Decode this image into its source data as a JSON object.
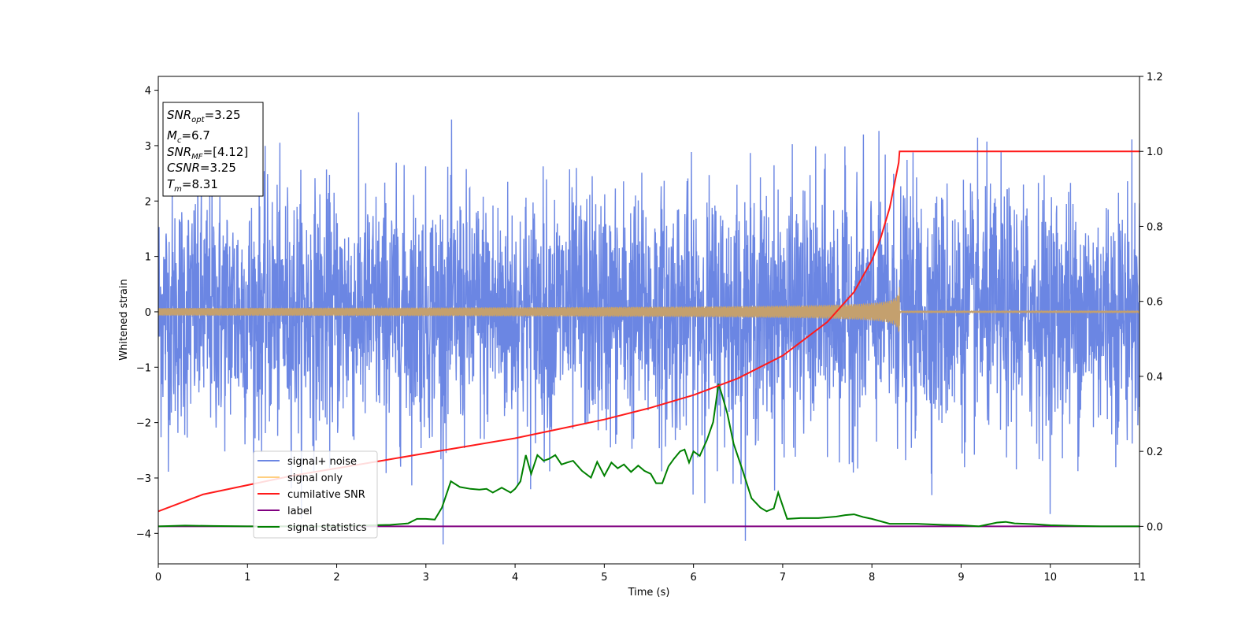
{
  "chart_data": {
    "type": "line",
    "xlabel": "Time (s)",
    "ylabel": "Whitened strain",
    "xlim": [
      0,
      11
    ],
    "ylim": [
      -4.55,
      4.25
    ],
    "y2lim": [
      -0.1,
      1.2
    ],
    "x_ticks": [
      "0",
      "1",
      "2",
      "3",
      "4",
      "5",
      "6",
      "7",
      "8",
      "9",
      "10",
      "11"
    ],
    "y_ticks": [
      "4",
      "3",
      "2",
      "1",
      "0",
      "−1",
      "−2",
      "−3",
      "−4"
    ],
    "y2_ticks": [
      "1.2",
      "1.0",
      "0.8",
      "0.6",
      "0.4",
      "0.2",
      "0.0"
    ],
    "grid": false,
    "legend_position": "lower-left",
    "annotation": {
      "lines": [
        {
          "base": "SNR",
          "sub": "opt",
          "rest": "=3.25"
        },
        {
          "base": "M",
          "sub": "c",
          "rest": "=6.7"
        },
        {
          "base": "SNR",
          "sub": "MF",
          "rest": "=[4.12]"
        },
        {
          "base": "CSNR",
          "sub": "",
          "rest": "=3.25"
        },
        {
          "base": "T",
          "sub": "m",
          "rest": "=8.31"
        }
      ]
    },
    "series": [
      {
        "name": "signal+ noise",
        "axis": "left",
        "color": "#6b86e3",
        "description_values": {
          "noise_std": 1.0,
          "noise_range": [
            -4.2,
            3.85
          ],
          "duration": 11
        }
      },
      {
        "name": "signal only",
        "axis": "left",
        "color": "#c4a06e",
        "legend_color": "#ffcf80",
        "envelope": {
          "start": 0,
          "merger": 8.31,
          "peak_amplitude": 0.45,
          "post_amplitude": 0.02
        }
      },
      {
        "name": "cumilative SNR",
        "axis": "right",
        "color": "#ff1a1a",
        "x": [
          0,
          0.5,
          1,
          1.5,
          2,
          2.5,
          3,
          3.5,
          4,
          4.5,
          5,
          5.5,
          6,
          6.5,
          7,
          7.5,
          7.8,
          8.0,
          8.1,
          8.2,
          8.25,
          8.3,
          8.31,
          11
        ],
        "values": [
          0.04,
          0.085,
          0.11,
          0.135,
          0.155,
          0.175,
          0.195,
          0.215,
          0.235,
          0.26,
          0.285,
          0.315,
          0.35,
          0.395,
          0.455,
          0.545,
          0.625,
          0.71,
          0.77,
          0.85,
          0.91,
          0.97,
          1.0,
          1.0
        ]
      },
      {
        "name": "label",
        "axis": "right",
        "color": "#800080",
        "x": [
          0,
          11
        ],
        "values": [
          0,
          0
        ]
      },
      {
        "name": "signal statistics",
        "axis": "right",
        "color": "#008000",
        "x": [
          0,
          0.3,
          0.6,
          1.0,
          1.5,
          2.0,
          2.4,
          2.6,
          2.8,
          2.9,
          3.0,
          3.1,
          3.18,
          3.28,
          3.38,
          3.5,
          3.6,
          3.68,
          3.75,
          3.85,
          3.95,
          4.0,
          4.06,
          4.12,
          4.18,
          4.25,
          4.32,
          4.38,
          4.45,
          4.52,
          4.58,
          4.65,
          4.75,
          4.85,
          4.92,
          5.0,
          5.08,
          5.15,
          5.22,
          5.3,
          5.38,
          5.45,
          5.52,
          5.58,
          5.65,
          5.72,
          5.78,
          5.85,
          5.9,
          5.95,
          6.0,
          6.07,
          6.15,
          6.22,
          6.28,
          6.32,
          6.38,
          6.45,
          6.55,
          6.65,
          6.75,
          6.82,
          6.9,
          6.95,
          7.05,
          7.2,
          7.4,
          7.6,
          7.7,
          7.8,
          7.9,
          8.0,
          8.2,
          8.5,
          8.8,
          9.0,
          9.2,
          9.4,
          9.5,
          9.6,
          9.8,
          10.0,
          10.3,
          10.6,
          11.0
        ],
        "values": [
          0.0,
          0.002,
          0.001,
          0.0,
          0.0,
          0.0,
          0.003,
          0.004,
          0.008,
          0.02,
          0.02,
          0.018,
          0.05,
          0.12,
          0.105,
          0.1,
          0.098,
          0.1,
          0.09,
          0.103,
          0.09,
          0.1,
          0.12,
          0.19,
          0.14,
          0.19,
          0.175,
          0.18,
          0.19,
          0.165,
          0.17,
          0.175,
          0.148,
          0.13,
          0.172,
          0.135,
          0.17,
          0.155,
          0.165,
          0.145,
          0.162,
          0.148,
          0.14,
          0.115,
          0.115,
          0.16,
          0.18,
          0.2,
          0.205,
          0.17,
          0.2,
          0.188,
          0.23,
          0.278,
          0.38,
          0.35,
          0.3,
          0.22,
          0.15,
          0.075,
          0.05,
          0.04,
          0.048,
          0.09,
          0.02,
          0.022,
          0.022,
          0.026,
          0.03,
          0.032,
          0.025,
          0.02,
          0.007,
          0.007,
          0.004,
          0.003,
          0.0,
          0.01,
          0.012,
          0.008,
          0.006,
          0.003,
          0.001,
          0.0,
          0.0
        ]
      }
    ]
  }
}
